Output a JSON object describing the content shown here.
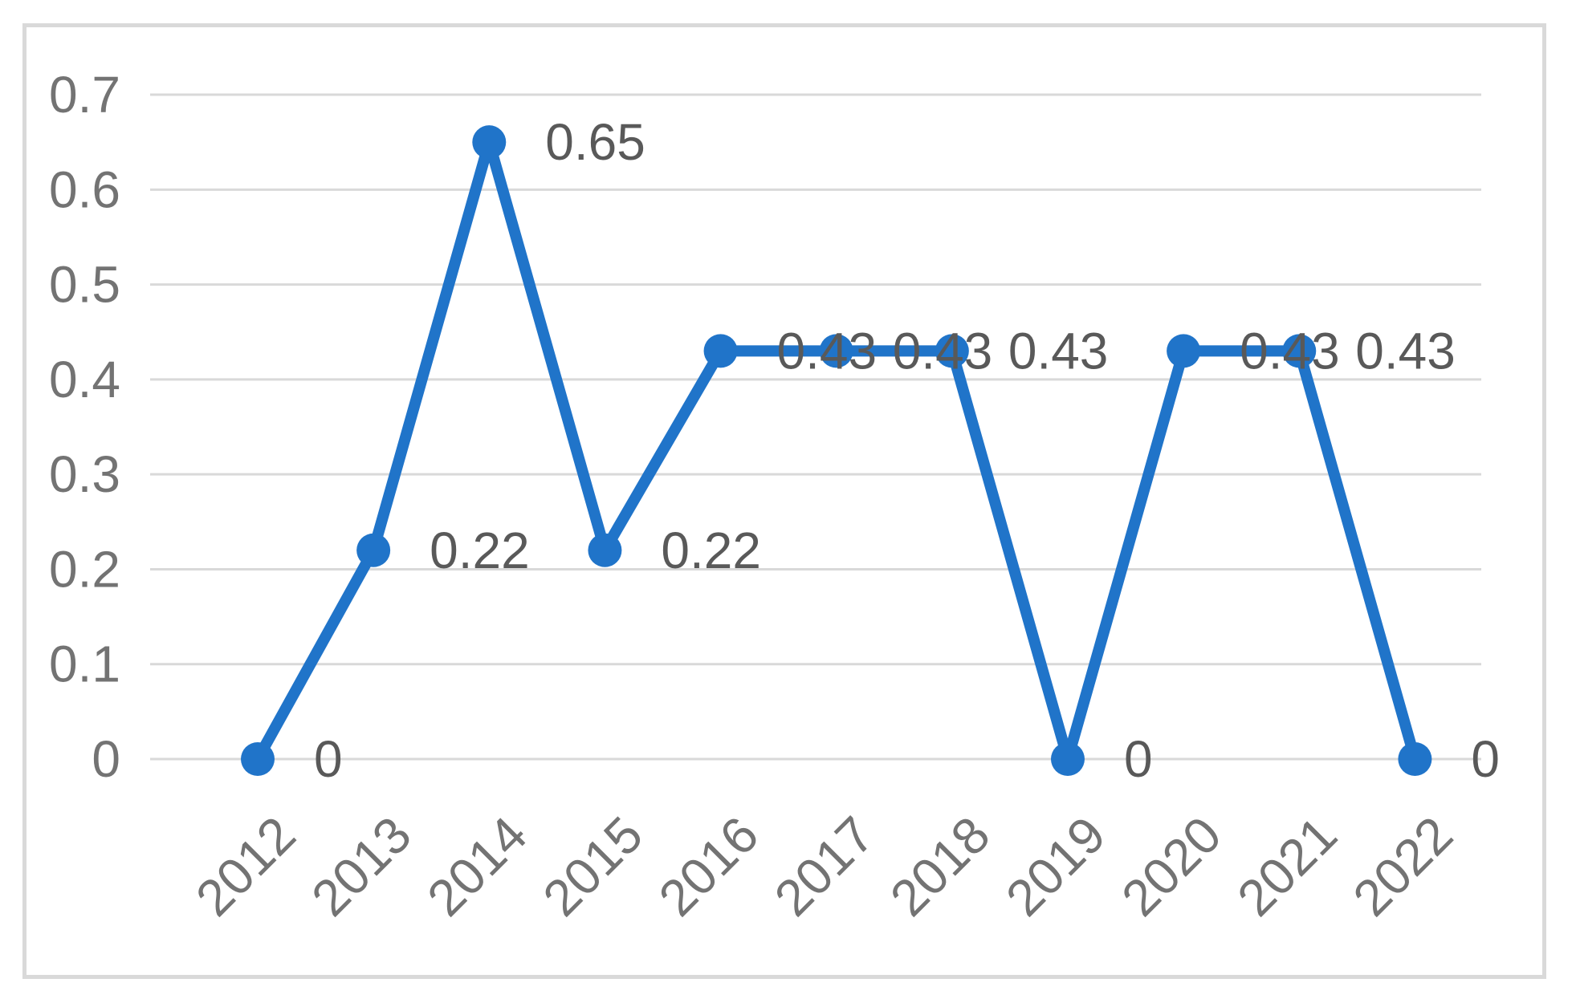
{
  "chart_data": {
    "type": "line",
    "title": "",
    "xlabel": "",
    "ylabel": "",
    "categories": [
      "2012",
      "2013",
      "2014",
      "2015",
      "2016",
      "2017",
      "2018",
      "2019",
      "2020",
      "2021",
      "2022"
    ],
    "values": [
      0,
      0.22,
      0.65,
      0.22,
      0.43,
      0.43,
      0.43,
      0,
      0.43,
      0.43,
      0
    ],
    "data_labels": [
      "0",
      "0.22",
      "0.65",
      "0.22",
      "0.43",
      "0.43",
      "0.43",
      "0",
      "0.43",
      "0.43",
      "0"
    ],
    "ytick_labels": [
      "0",
      "0.1",
      "0.2",
      "0.3",
      "0.4",
      "0.5",
      "0.6",
      "0.7"
    ],
    "yticks": [
      0,
      0.1,
      0.2,
      0.3,
      0.4,
      0.5,
      0.6,
      0.7
    ],
    "ylim": [
      0,
      0.7
    ],
    "grid": "horizontal-only",
    "legend": "none",
    "x_tick_rotation_deg": 45,
    "marker": "circle",
    "colors": {
      "line": "#2074C9",
      "marker": "#2074C9",
      "gridline": "#D9D9D9",
      "frame_border": "#D9D9D9",
      "axis_tick_text": "#737373",
      "data_label_text": "#595959",
      "background": "#FFFFFF"
    }
  }
}
